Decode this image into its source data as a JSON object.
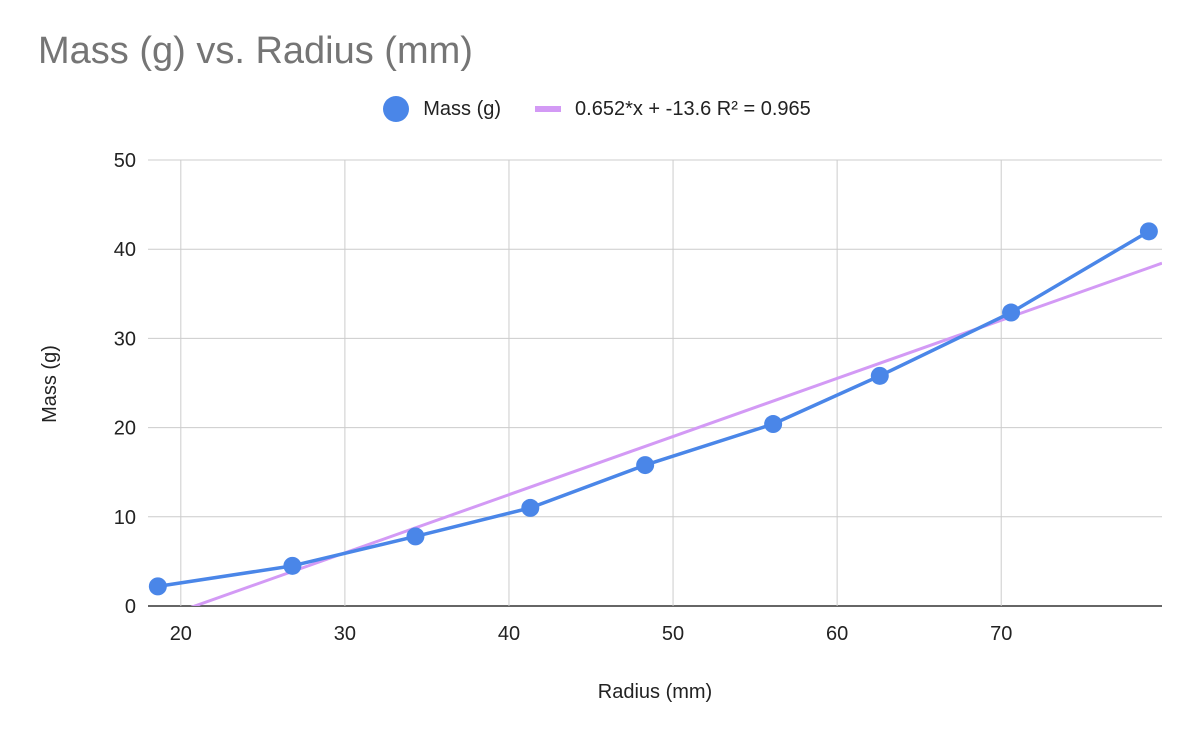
{
  "chart_data": {
    "type": "scatter",
    "title": "Mass (g) vs. Radius (mm)",
    "xlabel": "Radius (mm)",
    "ylabel": "Mass (g)",
    "xlim": [
      18,
      79.8
    ],
    "ylim": [
      0,
      50
    ],
    "xticks": [
      20,
      30,
      40,
      50,
      60,
      70
    ],
    "yticks": [
      0,
      10,
      20,
      30,
      40,
      50
    ],
    "grid": true,
    "legend_position": "top",
    "series": [
      {
        "name": "Mass (g)",
        "color": "#4a86e8",
        "x": [
          18.6,
          26.8,
          34.3,
          41.3,
          48.3,
          56.1,
          62.6,
          70.6,
          79.0
        ],
        "y": [
          2.2,
          4.5,
          7.8,
          11.0,
          15.8,
          20.4,
          25.8,
          32.9,
          42.0
        ]
      }
    ],
    "trendline": {
      "name": "0.652*x + -13.6 R² = 0.965",
      "color": "#d39af5",
      "slope": 0.652,
      "intercept": -13.6
    }
  }
}
